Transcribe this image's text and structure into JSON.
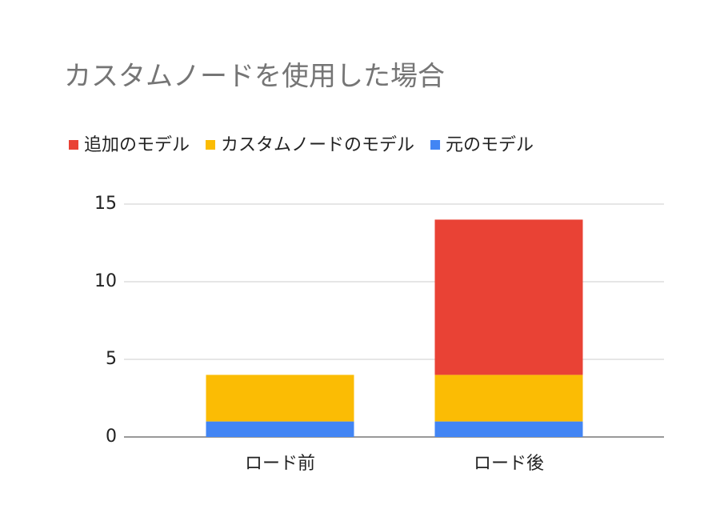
{
  "chart_data": {
    "type": "stacked_bar",
    "title": "カスタムノードを使用した場合",
    "categories": [
      "ロード前",
      "ロード後"
    ],
    "series": [
      {
        "name": "追加のモデル",
        "color": "#e94235",
        "values": [
          0,
          10
        ]
      },
      {
        "name": "カスタムノードのモデル",
        "color": "#fbbc04",
        "values": [
          3,
          3
        ]
      },
      {
        "name": "元のモデル",
        "color": "#4285f4",
        "values": [
          1,
          1
        ]
      }
    ],
    "ylim": [
      0,
      15
    ],
    "yticks": [
      0,
      5,
      10,
      15
    ],
    "grid": true,
    "legend": "top"
  }
}
